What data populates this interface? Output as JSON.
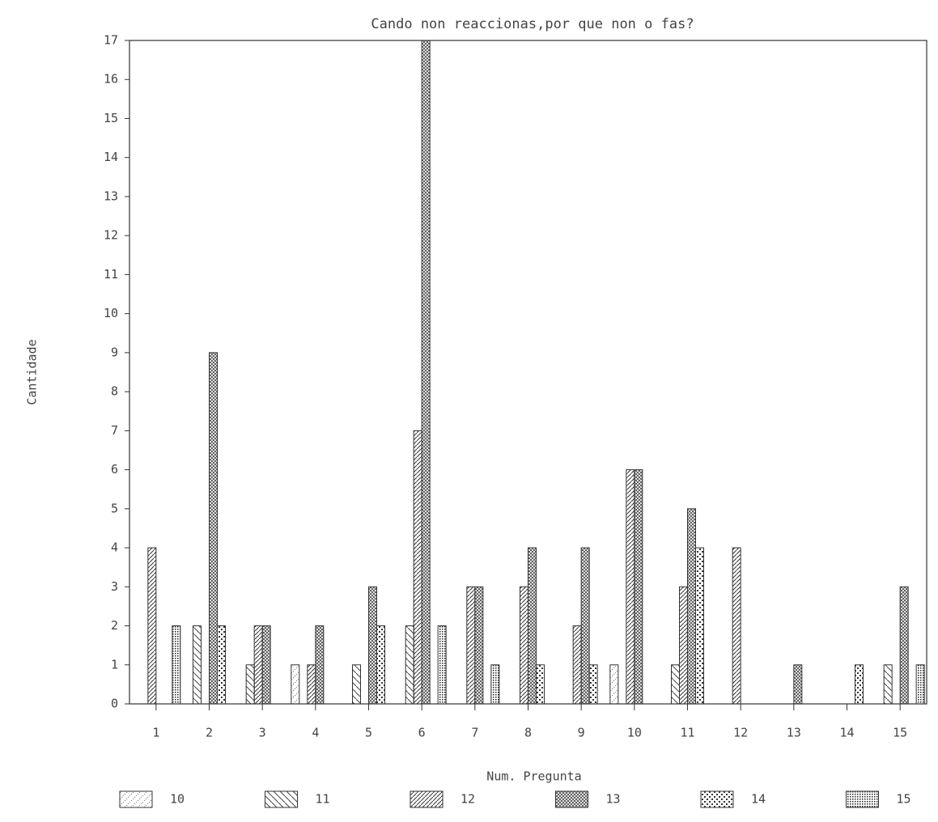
{
  "chart_data": {
    "type": "bar",
    "title": "Cando non reaccionas,por que non o fas?",
    "x_label": "Num. Pregunta",
    "y_label": "Cantidade",
    "categories": [
      "1",
      "2",
      "3",
      "4",
      "5",
      "6",
      "7",
      "8",
      "9",
      "10",
      "11",
      "12",
      "13",
      "14",
      "15"
    ],
    "series": [
      {
        "name": "10",
        "color": "#333333",
        "values": [
          0,
          0,
          0,
          1,
          0,
          0,
          0,
          0,
          0,
          1,
          0,
          0,
          0,
          0,
          0
        ]
      },
      {
        "name": "11",
        "color": "#333333",
        "values": [
          0,
          2,
          1,
          0,
          1,
          2,
          0,
          0,
          0,
          0,
          1,
          0,
          0,
          0,
          1
        ]
      },
      {
        "name": "12",
        "color": "#333333",
        "values": [
          4,
          0,
          2,
          1,
          0,
          7,
          3,
          3,
          2,
          6,
          3,
          4,
          0,
          0,
          0
        ]
      },
      {
        "name": "13",
        "color": "#333333",
        "values": [
          0,
          9,
          2,
          2,
          3,
          17,
          3,
          4,
          4,
          6,
          5,
          0,
          1,
          0,
          3
        ]
      },
      {
        "name": "14",
        "color": "#333333",
        "values": [
          0,
          2,
          0,
          0,
          2,
          0,
          0,
          1,
          1,
          0,
          4,
          0,
          0,
          1,
          0
        ]
      },
      {
        "name": "15",
        "color": "#333333",
        "values": [
          2,
          0,
          0,
          0,
          0,
          2,
          1,
          0,
          0,
          0,
          0,
          0,
          0,
          0,
          1
        ]
      }
    ],
    "ylim": [
      0,
      17
    ],
    "yticks": [
      0,
      1,
      2,
      3,
      4,
      5,
      6,
      7,
      8,
      9,
      10,
      11,
      12,
      13,
      14,
      15,
      16,
      17
    ],
    "grid": false
  }
}
